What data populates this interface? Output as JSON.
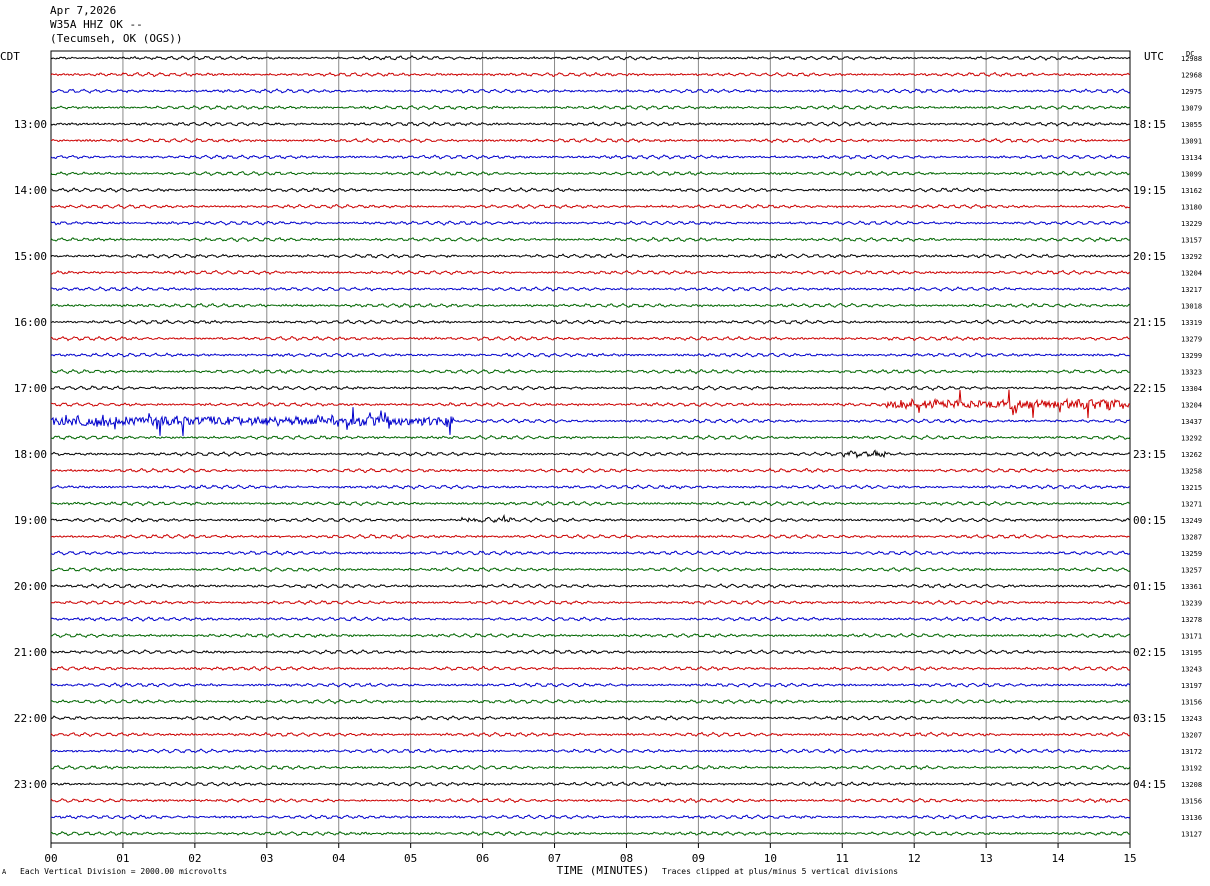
{
  "header": {
    "date": "Apr 7,2026",
    "station": "W35A HHZ OK --",
    "location": "(Tecumseh, OK (OGS))"
  },
  "left_label": "CDT",
  "right_label": "UTC",
  "dc_label": "DC",
  "footer": {
    "scale_note": "Each Vertical Division = 2000.00 microvolts",
    "clip_note": "Traces clipped at plus/minus 5 vertical divisions",
    "mark": "A"
  },
  "chart_data": {
    "type": "line",
    "title": "W35A HHZ OK --",
    "xlabel": "TIME (MINUTES)",
    "ylabel": "",
    "xlim": [
      0,
      15
    ],
    "x_ticks": [
      "00",
      "01",
      "02",
      "03",
      "04",
      "05",
      "06",
      "07",
      "08",
      "09",
      "10",
      "11",
      "12",
      "13",
      "14",
      "15"
    ],
    "rows_per_hour": 4,
    "row_count": 48,
    "trace_colors": [
      "#000000",
      "#cc0000",
      "#0000cc",
      "#006600"
    ],
    "left_hour_labels": [
      "13:00",
      "14:00",
      "15:00",
      "16:00",
      "17:00",
      "18:00",
      "19:00",
      "20:00",
      "21:00",
      "22:00",
      "23:00"
    ],
    "right_hour_labels": [
      "18:15",
      "19:15",
      "20:15",
      "21:15",
      "22:15",
      "23:15",
      "00:15",
      "01:15",
      "02:15",
      "03:15",
      "04:15"
    ],
    "dc_offsets": [
      12988,
      12968,
      12975,
      13079,
      13055,
      13091,
      13134,
      13099,
      13162,
      13180,
      13229,
      13157,
      13292,
      13204,
      13217,
      13018,
      13319,
      13279,
      13299,
      13323,
      13304,
      13204,
      13437,
      13292,
      13262,
      13258,
      13215,
      13271,
      13249,
      13287,
      13259,
      13257,
      13361,
      13239,
      13278,
      13171,
      13195,
      13243,
      13197,
      13156,
      13243,
      13207,
      13172,
      13192,
      13208,
      13156,
      13136,
      13127
    ],
    "events": [
      {
        "row": 21,
        "start_min": 11.6,
        "end_min": 15.0,
        "amplitude": "high"
      },
      {
        "row": 22,
        "start_min": 0.0,
        "end_min": 5.6,
        "amplitude": "high"
      },
      {
        "row": 24,
        "start_min": 11.0,
        "end_min": 11.6,
        "amplitude": "medium"
      },
      {
        "row": 28,
        "start_min": 5.7,
        "end_min": 6.4,
        "amplitude": "low"
      }
    ]
  }
}
